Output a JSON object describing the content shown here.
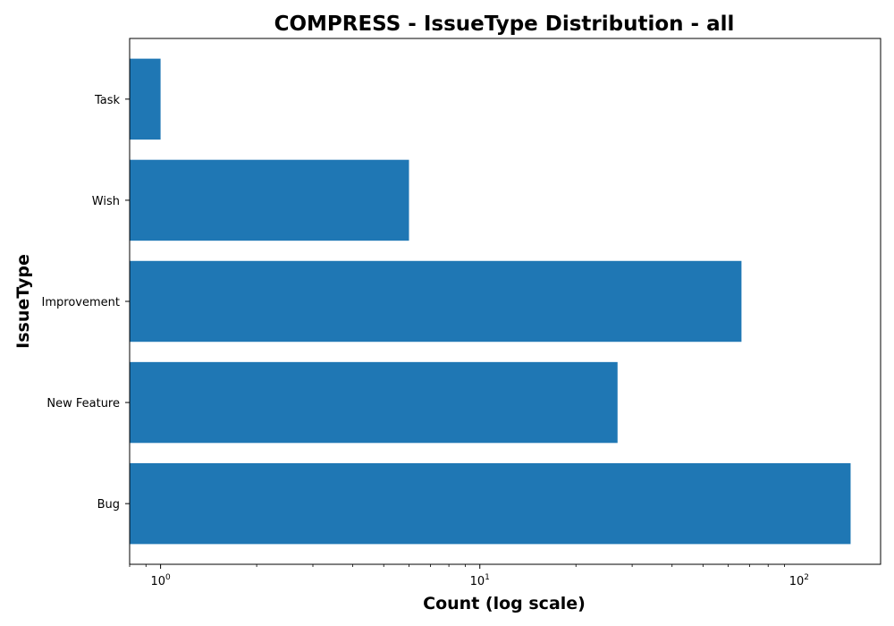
{
  "chart_data": {
    "type": "bar",
    "orientation": "horizontal",
    "title": "COMPRESS - IssueType Distribution - all",
    "xlabel": "Count (log scale)",
    "ylabel": "IssueType",
    "x_scale": "log",
    "xlim": [
      0.8,
      180
    ],
    "x_ticks": [
      {
        "value": 1,
        "base": "10",
        "exp": "0"
      },
      {
        "value": 10,
        "base": "10",
        "exp": "1"
      },
      {
        "value": 100,
        "base": "10",
        "exp": "2"
      }
    ],
    "categories": [
      "Bug",
      "New Feature",
      "Improvement",
      "Wish",
      "Task"
    ],
    "values": [
      145,
      27,
      66,
      6,
      1
    ],
    "bar_color": "#1f77b4",
    "grid": false,
    "legend": "none"
  }
}
